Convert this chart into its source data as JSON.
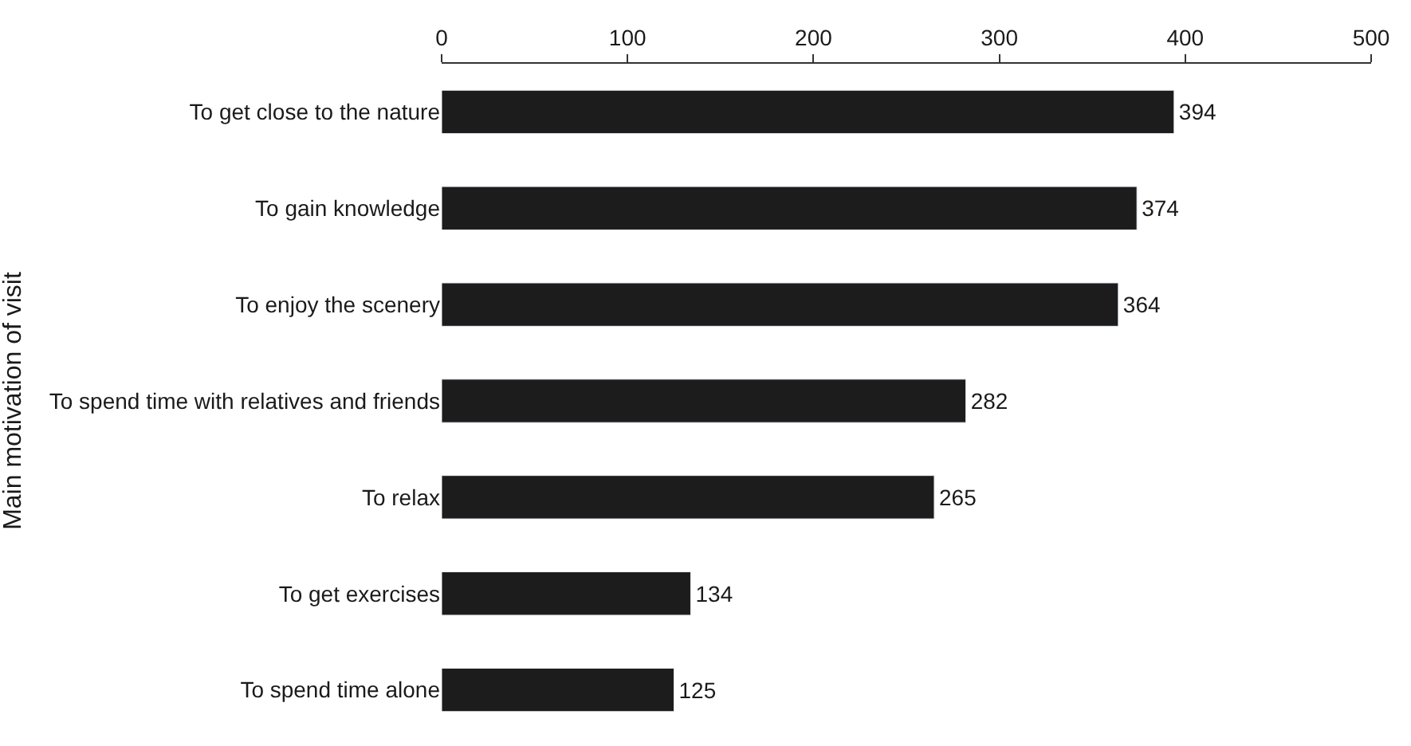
{
  "chart_data": {
    "type": "bar",
    "orientation": "horizontal",
    "ylabel": "Main motivation of visit",
    "categories": [
      "To get close to the nature",
      "To gain knowledge",
      "To enjoy the scenery",
      "To spend time with relatives and friends",
      "To relax",
      "To get exercises",
      "To spend time alone"
    ],
    "values": [
      394,
      374,
      364,
      282,
      265,
      134,
      125
    ],
    "color": "#1c1c1c",
    "xlim": [
      0,
      500
    ],
    "xticks": [
      0,
      100,
      200,
      300,
      400,
      500
    ],
    "data_labels": true
  }
}
